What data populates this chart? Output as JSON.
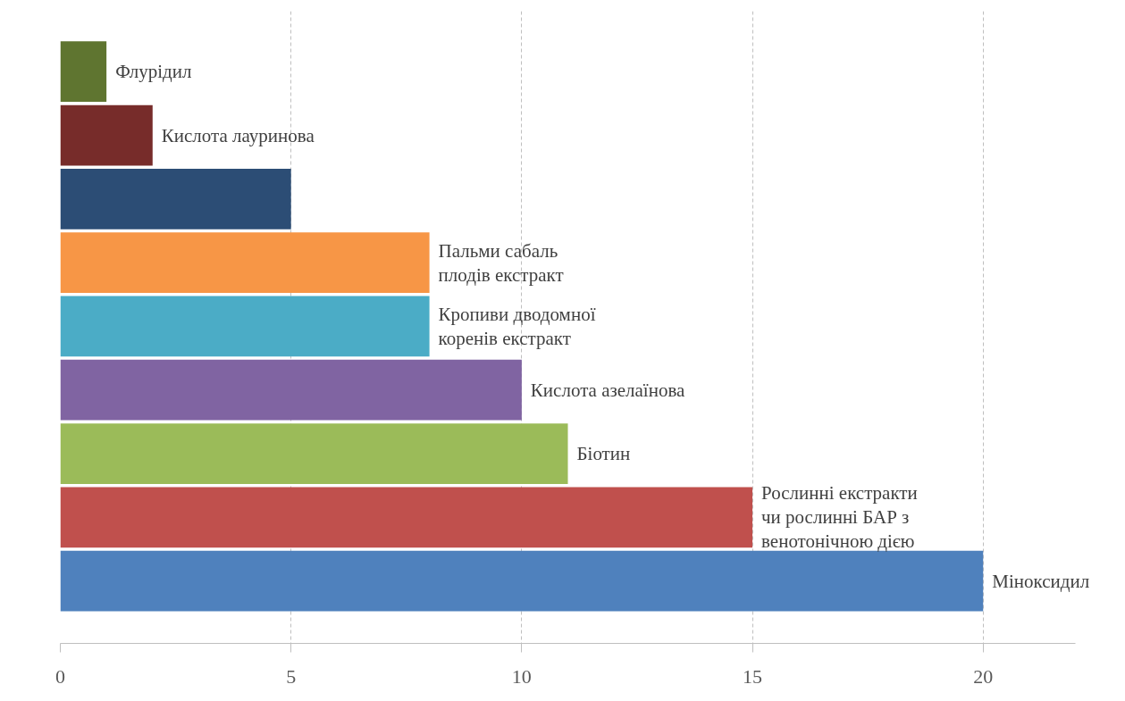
{
  "chart_data": {
    "type": "bar",
    "orientation": "horizontal",
    "categories": [
      "Флурідил",
      "Кислота лауринова",
      null,
      "Пальми сабаль\nплодів екстракт",
      "Кропиви дводомної\nкоренів екстракт",
      "Кислота азелаїнова",
      "Біотин",
      "Рослинні екстракти\nчи рослинні БАР з\nвенотонічною дією",
      "Міноксидил"
    ],
    "values": [
      1,
      2,
      5,
      8,
      8,
      10,
      11,
      15,
      20
    ],
    "colors": [
      "#5f7530",
      "#772c2a",
      "#2c4d75",
      "#f79646",
      "#4bacc6",
      "#8064a2",
      "#9bbb59",
      "#c0504d",
      "#4f81bd"
    ],
    "xlim": [
      0,
      22
    ],
    "xticks": [
      0,
      5,
      10,
      15,
      20
    ],
    "grid": "x"
  }
}
